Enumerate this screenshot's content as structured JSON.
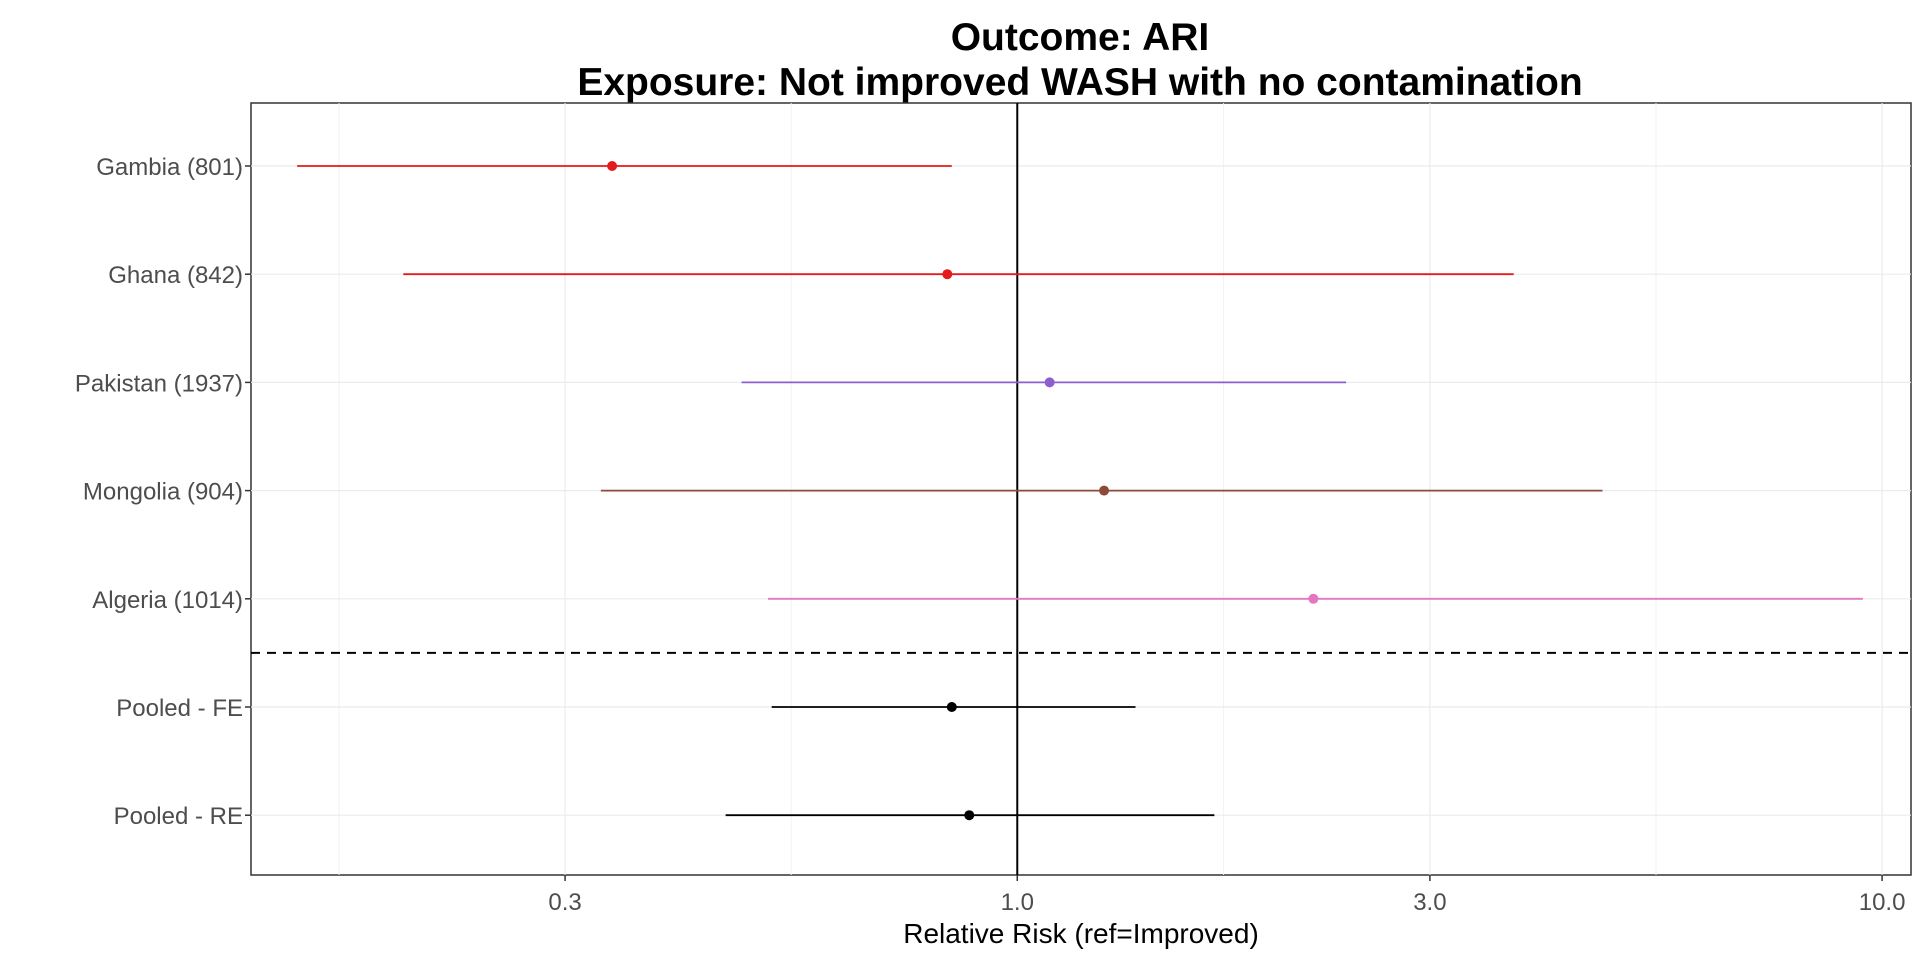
{
  "chart_data": {
    "type": "forest",
    "title": "Outcome: ARI",
    "subtitle": "Exposure: Not improved WASH with no contamination",
    "xlabel": "Relative Risk (ref=Improved)",
    "x_scale": "log10",
    "xlim": [
      0.13,
      10.8
    ],
    "x_ticks": [
      0.3,
      1.0,
      3.0,
      10.0
    ],
    "x_tick_labels": [
      "0.3",
      "1.0",
      "3.0",
      "10.0"
    ],
    "reference_line": 1.0,
    "grid": true,
    "rows": [
      {
        "label": "Gambia (801)",
        "estimate": 0.34,
        "lower": 0.147,
        "upper": 0.84,
        "color": "#e41a1c"
      },
      {
        "label": "Ghana (842)",
        "estimate": 0.83,
        "lower": 0.195,
        "upper": 3.75,
        "color": "#e41a1c"
      },
      {
        "label": "Pakistan (1937)",
        "estimate": 1.09,
        "lower": 0.48,
        "upper": 2.4,
        "color": "#8e5ecf"
      },
      {
        "label": "Mongolia (904)",
        "estimate": 1.26,
        "lower": 0.33,
        "upper": 4.75,
        "color": "#8b4a3a"
      },
      {
        "label": "Algeria (1014)",
        "estimate": 2.2,
        "lower": 0.515,
        "upper": 9.5,
        "color": "#e377c2"
      },
      {
        "label": "Pooled - FE",
        "estimate": 0.84,
        "lower": 0.52,
        "upper": 1.37,
        "color": "#000000"
      },
      {
        "label": "Pooled - RE",
        "estimate": 0.88,
        "lower": 0.46,
        "upper": 1.69,
        "color": "#000000"
      }
    ],
    "separator_after_row": 5
  }
}
